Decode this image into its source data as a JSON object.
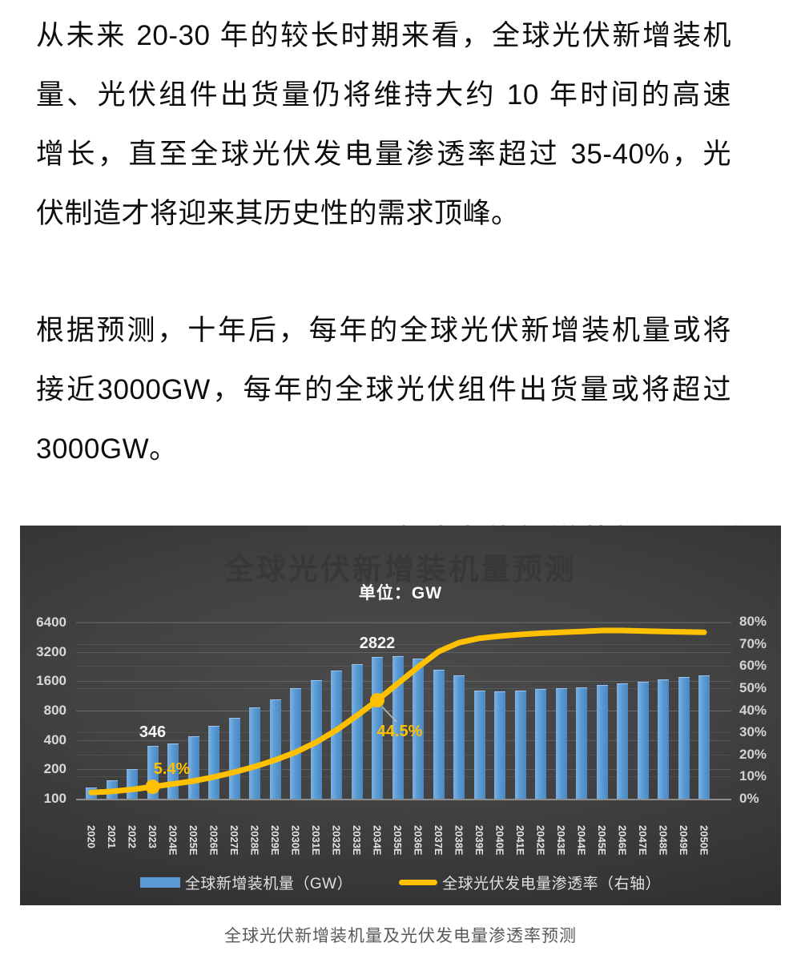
{
  "paragraphs": [
    {
      "lines": [
        "从未来 20-30 年的较长时期来看，全球光伏新增装机",
        "量、光伏组件出货量仍将维持大约 10 年时间的高速",
        "增长，直至全球光伏发电量渗透率超过 35-40%，光",
        "伏制造才将迎来其历史性的需求顶峰。"
      ]
    },
    {
      "lines": [
        "根据预测，十年后，每年的全球光伏新增装机量或将",
        "接近3000GW，每年的全球光伏组件出货量或将超过",
        "3000GW。"
      ]
    }
  ],
  "chart": {
    "ghost_top_text": "全球光伏新增装机量预测",
    "title": "全球光伏新增装机量预测",
    "subtitle": "单位：GW",
    "caption": "全球光伏新增装机量及光伏发电量渗透率预测",
    "colors": {
      "bar": "#5B9BD5",
      "line": "#FFC000",
      "panel_bg": "#3a3a3a"
    },
    "legend": [
      {
        "type": "bar",
        "label": "全球新增装机量（GW）"
      },
      {
        "type": "line",
        "label": "全球光伏发电量渗透率（右轴）"
      }
    ]
  },
  "chart_data": {
    "type": "bar+line",
    "title": "全球光伏新增装机量预测",
    "subtitle": "单位：GW",
    "categories": [
      "2020",
      "2021",
      "2022",
      "2023",
      "2024E",
      "2025E",
      "2026E",
      "2027E",
      "2028E",
      "2029E",
      "2030E",
      "2031E",
      "2032E",
      "2033E",
      "2034E",
      "2035E",
      "2036E",
      "2037E",
      "2038E",
      "2039E",
      "2040E",
      "2041E",
      "2042E",
      "2043E",
      "2044E",
      "2045E",
      "2046E",
      "2047E",
      "2048E",
      "2049E",
      "2050E"
    ],
    "series": [
      {
        "name": "全球新增装机量（GW）",
        "type": "bar",
        "axis": "left",
        "values": [
          130,
          155,
          200,
          346,
          370,
          435,
          555,
          680,
          860,
          1050,
          1350,
          1650,
          2040,
          2400,
          2822,
          2870,
          2750,
          2100,
          1820,
          1270,
          1260,
          1270,
          1320,
          1350,
          1390,
          1450,
          1510,
          1580,
          1660,
          1765,
          1825
        ]
      },
      {
        "name": "全球光伏发电量渗透率（右轴）",
        "type": "line",
        "axis": "right",
        "values_percent": [
          2.8,
          3.3,
          4.2,
          5.4,
          6.7,
          8.0,
          9.8,
          12.0,
          14.5,
          17.5,
          21.0,
          25.5,
          31.0,
          37.5,
          44.5,
          52.0,
          59.5,
          66.5,
          70.5,
          72.5,
          73.5,
          74.2,
          74.8,
          75.2,
          75.6,
          76.0,
          76.0,
          75.8,
          75.6,
          75.4,
          75.2
        ]
      }
    ],
    "left_axis": {
      "scale": "log2",
      "ticks": [
        100,
        200,
        400,
        800,
        1600,
        3200,
        6400
      ]
    },
    "right_axis": {
      "ticks_percent": [
        0,
        10,
        20,
        30,
        40,
        50,
        60,
        70,
        80
      ]
    },
    "point_labels": [
      {
        "category_index": 3,
        "series": "bar",
        "text": "346"
      },
      {
        "category_index": 14,
        "series": "bar",
        "text": "2822"
      },
      {
        "category_index": 3,
        "series": "line",
        "text": "5.4%"
      },
      {
        "category_index": 14,
        "series": "line",
        "text": "44.5%"
      }
    ],
    "legend_position": "bottom",
    "grid": true
  }
}
